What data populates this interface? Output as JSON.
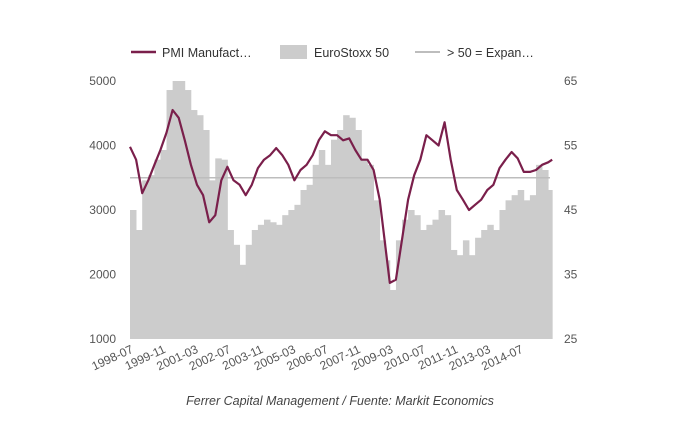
{
  "chart_data": {
    "type": "bar+line",
    "legend": [
      "PMI Manufact…",
      "EuroStoxx 50",
      "> 50 = Expan…"
    ],
    "legend_placement": "top",
    "caption": "Ferrer Capital Management / Fuente: Markit Economics",
    "x_tick_labels": [
      "1998-07",
      "1999-11",
      "2001-03",
      "2002-07",
      "2003-11",
      "2005-03",
      "2006-07",
      "2007-11",
      "2009-03",
      "2010-07",
      "2011-11",
      "2013-03",
      "2014-07"
    ],
    "y_left": {
      "ticks": [
        "1000",
        "2000",
        "3000",
        "4000",
        "5000"
      ],
      "lim": [
        1000,
        5000
      ]
    },
    "y_right": {
      "ticks": [
        "25",
        "35",
        "45",
        "55",
        "65"
      ],
      "lim": [
        25,
        65
      ]
    },
    "grid": false,
    "colors": {
      "pmi": "#7a1f4b",
      "eurostoxx": "#cccccc",
      "threshold": "#bdbdbd"
    },
    "threshold": 50,
    "dates": [
      "1998-07",
      "1998-10",
      "1999-01",
      "1999-04",
      "1999-07",
      "1999-10",
      "2000-01",
      "2000-04",
      "2000-07",
      "2000-10",
      "2001-01",
      "2001-04",
      "2001-07",
      "2001-10",
      "2002-01",
      "2002-04",
      "2002-07",
      "2002-10",
      "2003-01",
      "2003-04",
      "2003-07",
      "2003-10",
      "2004-01",
      "2004-04",
      "2004-07",
      "2004-10",
      "2005-01",
      "2005-04",
      "2005-07",
      "2005-10",
      "2006-01",
      "2006-04",
      "2006-07",
      "2006-10",
      "2007-01",
      "2007-04",
      "2007-07",
      "2007-10",
      "2008-01",
      "2008-04",
      "2008-07",
      "2008-10",
      "2009-01",
      "2009-03",
      "2009-06",
      "2009-09",
      "2009-12",
      "2010-03",
      "2010-06",
      "2010-09",
      "2010-12",
      "2011-03",
      "2011-06",
      "2011-09",
      "2011-12",
      "2012-03",
      "2012-06",
      "2012-09",
      "2012-12",
      "2013-03",
      "2013-06",
      "2013-09",
      "2013-12",
      "2014-03",
      "2014-06",
      "2014-09",
      "2014-12",
      "2015-03",
      "2015-06",
      "2015-09",
      "2015-11"
    ],
    "series": [
      {
        "name": "PMI Manufact…",
        "axis": "right",
        "type": "line",
        "values": [
          54.8,
          52.8,
          47.6,
          49.6,
          52,
          54.3,
          57,
          60.5,
          59.3,
          55.8,
          52,
          48.9,
          47.3,
          43.1,
          44.2,
          49.6,
          51.7,
          49.6,
          48.9,
          47.3,
          48.9,
          51.5,
          52.8,
          53.5,
          54.6,
          53.5,
          52,
          49.6,
          51.2,
          52,
          53.5,
          55.8,
          57.2,
          56.6,
          56.6,
          55.8,
          56.1,
          54.3,
          52.8,
          52.8,
          51.2,
          46.6,
          38.8,
          33.7,
          34.2,
          40.4,
          46.6,
          50.4,
          52.8,
          56.6,
          55.8,
          55,
          58.6,
          52.8,
          48.1,
          46.6,
          45,
          45.8,
          46.6,
          48.1,
          48.9,
          51.5,
          52.8,
          54,
          53,
          50.9,
          50.9,
          51.2,
          52,
          52.4,
          52.8
        ]
      },
      {
        "name": "EuroStoxx 50",
        "axis": "left",
        "type": "bar",
        "values": [
          3000,
          2690,
          3460,
          3540,
          3780,
          3930,
          4860,
          5100,
          5100,
          4860,
          4550,
          4470,
          4240,
          3460,
          3800,
          3780,
          2690,
          2460,
          2150,
          2460,
          2690,
          2770,
          2850,
          2810,
          2770,
          2920,
          3000,
          3080,
          3310,
          3390,
          3700,
          3930,
          3700,
          4090,
          4240,
          4470,
          4430,
          4240,
          3780,
          3700,
          3150,
          2530,
          2220,
          1760,
          2530,
          2850,
          3000,
          2920,
          2690,
          2770,
          2850,
          3000,
          2920,
          2380,
          2300,
          2530,
          2300,
          2570,
          2690,
          2770,
          2690,
          3000,
          3150,
          3230,
          3310,
          3150,
          3230,
          3700,
          3620,
          3310,
          3460
        ]
      }
    ]
  }
}
